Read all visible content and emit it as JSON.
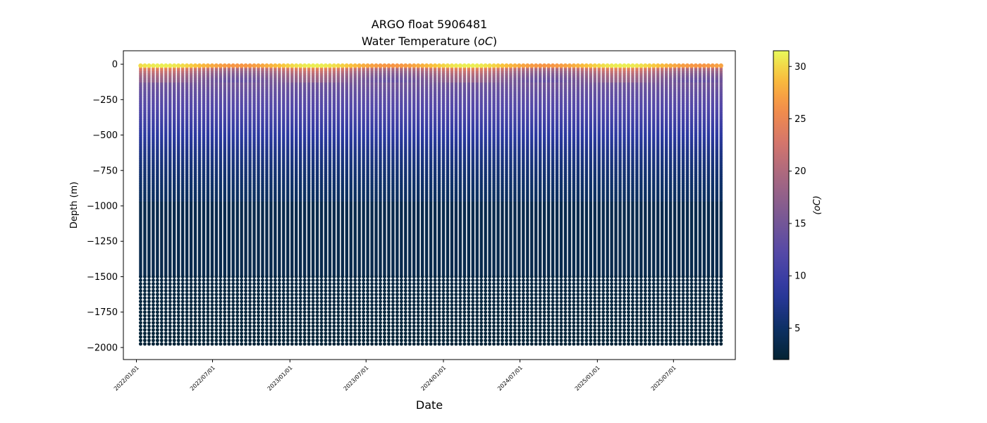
{
  "chart_data": {
    "type": "scatter",
    "title": "ARGO float 5906481",
    "subtitle": "Water Temperature (",
    "subtitle_unit": "oC",
    "subtitle_close": ")",
    "xlabel": "Date",
    "ylabel": "Depth (m)",
    "colorbar_label": "(oC)",
    "colormap": "thermal",
    "x_start": "2022-01-11",
    "x_end": "2025-10-31",
    "profile_interval_days": 10,
    "xlim": [
      "2021-12-01",
      "2025-11-25"
    ],
    "ylim": [
      -2085,
      95
    ],
    "clim": [
      2,
      31.5
    ],
    "x_ticks": [
      "2022/01/01",
      "2022/07/01",
      "2023/01/01",
      "2023/07/01",
      "2024/01/01",
      "2024/07/01",
      "2025/01/01",
      "2025/07/01"
    ],
    "y_ticks": [
      0,
      -250,
      -500,
      -750,
      -1000,
      -1250,
      -1500,
      -1750,
      -2000
    ],
    "y_tick_labels": [
      "0",
      "−250",
      "−500",
      "−750",
      "−1000",
      "−1250",
      "−1500",
      "−1750",
      "−2000"
    ],
    "colorbar_ticks": [
      5,
      10,
      15,
      20,
      25,
      30
    ],
    "shallow_depth_range": [
      0,
      -970
    ],
    "deep_depth_range": [
      -1500,
      -1975
    ],
    "deep_sample_spacing_m": 25,
    "temperature_profile": {
      "depth": [
        0,
        -10,
        -25,
        -50,
        -75,
        -100,
        -150,
        -200,
        -300,
        -400,
        -500,
        -600,
        -750,
        -900,
        -1000,
        -1200,
        -1500,
        -1750,
        -2000
      ],
      "temp": [
        28,
        26.5,
        23,
        20,
        18,
        16.5,
        14.5,
        13.5,
        12,
        10.3,
        8.5,
        7.2,
        5.8,
        4.9,
        4.5,
        3.7,
        3.0,
        2.6,
        2.3
      ]
    },
    "grid": false,
    "legend": "none"
  }
}
